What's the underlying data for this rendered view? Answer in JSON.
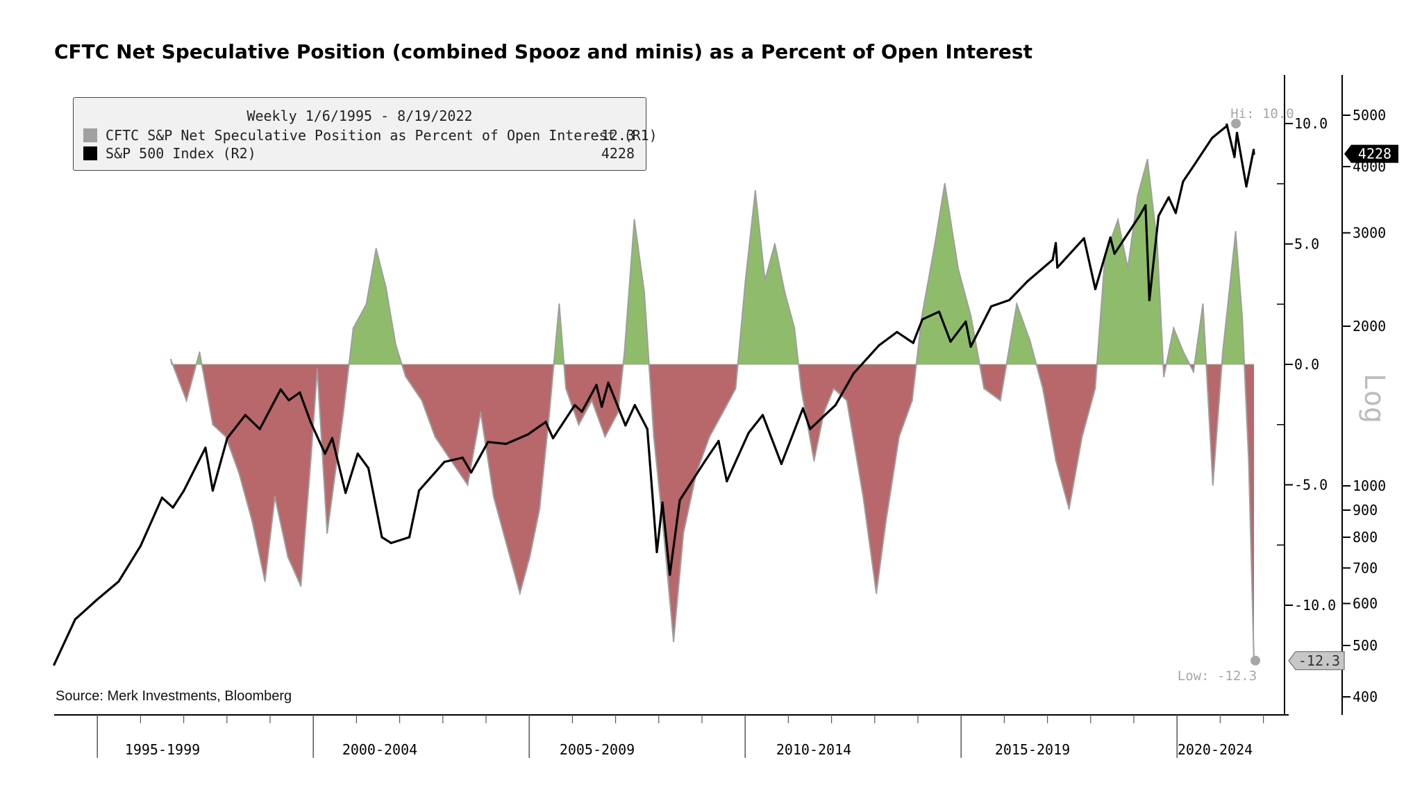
{
  "title": "CFTC Net Speculative Position (combined Spooz and minis) as a Percent of Open Interest",
  "source": "Source: Merk Investments, Bloomberg",
  "legend": {
    "header": "Weekly 1/6/1995 - 8/19/2022",
    "items": [
      {
        "name": "CFTC S&P Net Speculative Position as Percent of Open Interest (R1)",
        "value": "-12.3",
        "color": "#a0a0a0"
      },
      {
        "name": "S&P 500 Index (R2)",
        "value": "4228",
        "color": "#000000"
      }
    ]
  },
  "colors": {
    "positive_fill": "#8fbc6a",
    "negative_fill": "#b8676a",
    "spec_stroke": "#9e9e9e",
    "spx_line": "#000000",
    "marker": "#a6a6a6"
  },
  "chart_data": {
    "type": "line",
    "x_range": [
      "1995-01-06",
      "2022-08-19"
    ],
    "x_period_labels": [
      "1995-1999",
      "2000-2004",
      "2005-2009",
      "2010-2014",
      "2015-2019",
      "2020-2024"
    ],
    "axis_r1": {
      "ticks": [
        "10.0",
        "5.0",
        "0.0",
        "-5.0",
        "-10.0"
      ],
      "tick_values": [
        10,
        5,
        0,
        -5,
        -10
      ],
      "range": [
        -13.6,
        12.0
      ],
      "scale": "linear"
    },
    "axis_r2": {
      "ticks": [
        "5000",
        "4000",
        "3000",
        "2000",
        "1000",
        "900",
        "800",
        "700",
        "600",
        "500",
        "400"
      ],
      "tick_values": [
        5000,
        4000,
        3000,
        2000,
        1000,
        900,
        800,
        700,
        600,
        500,
        400
      ],
      "range": [
        380,
        5400
      ],
      "scale": "log",
      "label": "Log"
    },
    "annotations": {
      "hi_label": "Hi: 10.0",
      "hi_value": 10.0,
      "low_label": "Low: -12.3",
      "low_value": -12.3,
      "last_spx_label": "4228",
      "last_spx_value": 4228,
      "last_spec_label": "-12.3",
      "last_spec_value": -12.3
    },
    "series": [
      {
        "name": "CFTC S&P Net Speculative Position as Percent of Open Interest (R1)",
        "axis": "R1",
        "kind": "area",
        "points": [
          [
            "1995-01-06",
            0.2
          ],
          [
            "1995-06-01",
            -1.5
          ],
          [
            "1995-10-01",
            0.5
          ],
          [
            "1996-02-01",
            -2.5
          ],
          [
            "1996-06-01",
            -3.0
          ],
          [
            "1996-10-01",
            -4.5
          ],
          [
            "1997-02-01",
            -6.5
          ],
          [
            "1997-06-01",
            -9.0
          ],
          [
            "1997-09-01",
            -5.5
          ],
          [
            "1998-01-01",
            -8.0
          ],
          [
            "1998-05-01",
            -9.2
          ],
          [
            "1998-08-01",
            -4.0
          ],
          [
            "1998-10-01",
            -0.2
          ],
          [
            "1999-01-01",
            -7.0
          ],
          [
            "1999-06-01",
            -2.0
          ],
          [
            "1999-09-01",
            1.5
          ],
          [
            "2000-01-01",
            2.5
          ],
          [
            "2000-04-01",
            4.8
          ],
          [
            "2000-07-01",
            3.2
          ],
          [
            "2000-10-01",
            0.8
          ],
          [
            "2001-01-01",
            -0.5
          ],
          [
            "2001-06-01",
            -1.5
          ],
          [
            "2001-10-01",
            -3.0
          ],
          [
            "2002-03-01",
            -4.0
          ],
          [
            "2002-08-01",
            -5.0
          ],
          [
            "2002-12-01",
            -2.0
          ],
          [
            "2003-04-01",
            -5.5
          ],
          [
            "2003-08-01",
            -7.5
          ],
          [
            "2003-12-01",
            -9.5
          ],
          [
            "2004-03-01",
            -8.0
          ],
          [
            "2004-06-01",
            -6.0
          ],
          [
            "2004-09-01",
            -2.0
          ],
          [
            "2004-12-01",
            2.5
          ],
          [
            "2005-02-01",
            -1.0
          ],
          [
            "2005-06-01",
            -2.5
          ],
          [
            "2005-10-01",
            -1.5
          ],
          [
            "2006-02-01",
            -3.0
          ],
          [
            "2006-06-01",
            -2.0
          ],
          [
            "2006-08-01",
            0.5
          ],
          [
            "2006-11-01",
            6.0
          ],
          [
            "2007-02-01",
            3.0
          ],
          [
            "2007-05-01",
            -3.0
          ],
          [
            "2007-08-01",
            -7.0
          ],
          [
            "2007-11-01",
            -11.5
          ],
          [
            "2008-02-01",
            -7.0
          ],
          [
            "2008-06-01",
            -4.5
          ],
          [
            "2008-10-01",
            -3.0
          ],
          [
            "2009-02-01",
            -2.0
          ],
          [
            "2009-06-01",
            -1.0
          ],
          [
            "2009-09-01",
            3.5
          ],
          [
            "2009-12-01",
            7.2
          ],
          [
            "2010-03-01",
            3.5
          ],
          [
            "2010-06-01",
            5.0
          ],
          [
            "2010-09-01",
            3.0
          ],
          [
            "2010-12-01",
            1.5
          ],
          [
            "2011-02-01",
            -1.0
          ],
          [
            "2011-06-01",
            -4.0
          ],
          [
            "2011-09-01",
            -2.0
          ],
          [
            "2011-12-01",
            -1.0
          ],
          [
            "2012-04-01",
            -1.5
          ],
          [
            "2012-09-01",
            -5.5
          ],
          [
            "2013-01-01",
            -9.5
          ],
          [
            "2013-04-01",
            -6.5
          ],
          [
            "2013-08-01",
            -3.0
          ],
          [
            "2013-12-01",
            -1.5
          ],
          [
            "2014-03-01",
            2.0
          ],
          [
            "2014-07-01",
            5.0
          ],
          [
            "2014-10-01",
            7.5
          ],
          [
            "2015-02-01",
            4.0
          ],
          [
            "2015-06-01",
            2.0
          ],
          [
            "2015-10-01",
            -1.0
          ],
          [
            "2016-03-01",
            -1.5
          ],
          [
            "2016-08-01",
            2.5
          ],
          [
            "2016-12-01",
            1.0
          ],
          [
            "2017-04-01",
            -1.0
          ],
          [
            "2017-08-01",
            -4.0
          ],
          [
            "2017-12-01",
            -6.0
          ],
          [
            "2018-04-01",
            -3.0
          ],
          [
            "2018-08-01",
            -1.0
          ],
          [
            "2018-11-01",
            4.5
          ],
          [
            "2019-03-01",
            6.0
          ],
          [
            "2019-06-01",
            4.0
          ],
          [
            "2019-09-01",
            7.0
          ],
          [
            "2019-12-01",
            8.5
          ],
          [
            "2020-03-01",
            5.0
          ],
          [
            "2020-05-01",
            -0.5
          ],
          [
            "2020-08-01",
            1.5
          ],
          [
            "2020-11-01",
            0.5
          ],
          [
            "2021-02-01",
            -0.3
          ],
          [
            "2021-05-01",
            2.5
          ],
          [
            "2021-08-01",
            -5.0
          ],
          [
            "2021-11-01",
            0.5
          ],
          [
            "2022-01-01",
            3.0
          ],
          [
            "2022-03-01",
            5.5
          ],
          [
            "2022-05-01",
            2.0
          ],
          [
            "2022-07-01",
            -4.0
          ],
          [
            "2022-08-19",
            -12.3
          ]
        ]
      },
      {
        "name": "S&P 500 Index (R2)",
        "axis": "R2",
        "kind": "line",
        "points": [
          [
            "1995-01-06",
            460
          ],
          [
            "1995-07-01",
            560
          ],
          [
            "1996-01-01",
            610
          ],
          [
            "1996-07-01",
            660
          ],
          [
            "1997-01-01",
            770
          ],
          [
            "1997-07-01",
            950
          ],
          [
            "1997-10-01",
            910
          ],
          [
            "1998-01-01",
            980
          ],
          [
            "1998-07-01",
            1180
          ],
          [
            "1998-08-31",
            980
          ],
          [
            "1998-12-31",
            1230
          ],
          [
            "1999-06-01",
            1360
          ],
          [
            "1999-10-01",
            1280
          ],
          [
            "2000-03-24",
            1520
          ],
          [
            "2000-06-01",
            1450
          ],
          [
            "2000-09-01",
            1500
          ],
          [
            "2000-12-01",
            1320
          ],
          [
            "2001-04-01",
            1150
          ],
          [
            "2001-06-01",
            1230
          ],
          [
            "2001-09-21",
            970
          ],
          [
            "2002-01-01",
            1150
          ],
          [
            "2002-04-01",
            1080
          ],
          [
            "2002-07-23",
            800
          ],
          [
            "2002-10-09",
            780
          ],
          [
            "2003-03-11",
            800
          ],
          [
            "2003-06-01",
            980
          ],
          [
            "2003-12-31",
            1110
          ],
          [
            "2004-06-01",
            1130
          ],
          [
            "2004-08-12",
            1060
          ],
          [
            "2004-12-31",
            1210
          ],
          [
            "2005-06-01",
            1200
          ],
          [
            "2005-12-01",
            1250
          ],
          [
            "2006-05-01",
            1320
          ],
          [
            "2006-07-01",
            1230
          ],
          [
            "2006-12-31",
            1420
          ],
          [
            "2007-03-01",
            1380
          ],
          [
            "2007-07-01",
            1550
          ],
          [
            "2007-08-15",
            1410
          ],
          [
            "2007-10-09",
            1565
          ],
          [
            "2008-03-01",
            1300
          ],
          [
            "2008-05-19",
            1420
          ],
          [
            "2008-09-01",
            1280
          ],
          [
            "2008-11-20",
            750
          ],
          [
            "2009-01-06",
            930
          ],
          [
            "2009-03-09",
            680
          ],
          [
            "2009-06-01",
            940
          ],
          [
            "2009-12-31",
            1115
          ],
          [
            "2010-04-23",
            1215
          ],
          [
            "2010-07-01",
            1020
          ],
          [
            "2010-12-31",
            1258
          ],
          [
            "2011-04-29",
            1360
          ],
          [
            "2011-10-03",
            1100
          ],
          [
            "2012-04-01",
            1400
          ],
          [
            "2012-06-01",
            1280
          ],
          [
            "2012-12-31",
            1420
          ],
          [
            "2013-06-01",
            1630
          ],
          [
            "2013-12-31",
            1840
          ],
          [
            "2014-06-01",
            1950
          ],
          [
            "2014-10-15",
            1860
          ],
          [
            "2014-12-31",
            2060
          ],
          [
            "2015-05-21",
            2130
          ],
          [
            "2015-08-25",
            1870
          ],
          [
            "2015-12-31",
            2040
          ],
          [
            "2016-02-11",
            1830
          ],
          [
            "2016-08-01",
            2180
          ],
          [
            "2016-12-31",
            2240
          ],
          [
            "2017-06-01",
            2430
          ],
          [
            "2017-12-31",
            2670
          ],
          [
            "2018-01-26",
            2870
          ],
          [
            "2018-02-08",
            2580
          ],
          [
            "2018-09-20",
            2930
          ],
          [
            "2018-12-24",
            2350
          ],
          [
            "2019-04-30",
            2940
          ],
          [
            "2019-06-03",
            2740
          ],
          [
            "2019-12-31",
            3230
          ],
          [
            "2020-02-19",
            3380
          ],
          [
            "2020-03-23",
            2240
          ],
          [
            "2020-06-08",
            3230
          ],
          [
            "2020-09-01",
            3500
          ],
          [
            "2020-10-30",
            3270
          ],
          [
            "2020-12-31",
            3750
          ],
          [
            "2021-04-01",
            4020
          ],
          [
            "2021-09-01",
            4530
          ],
          [
            "2021-12-31",
            4766
          ],
          [
            "2022-01-03",
            4800
          ],
          [
            "2022-03-08",
            4170
          ],
          [
            "2022-03-29",
            4630
          ],
          [
            "2022-06-16",
            3670
          ],
          [
            "2022-08-16",
            4300
          ],
          [
            "2022-08-19",
            4228
          ]
        ]
      }
    ]
  }
}
